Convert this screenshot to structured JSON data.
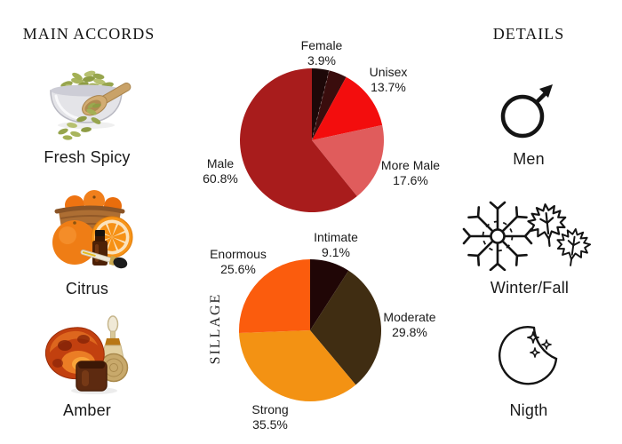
{
  "page": {
    "background": "#ffffff",
    "text_color": "#1a1a1a"
  },
  "left": {
    "title": "MAIN ACCORDS",
    "items": [
      {
        "label": "Fresh Spicy",
        "illustration": "cardamom-pods-bowl-scoop"
      },
      {
        "label": "Citrus",
        "illustration": "oranges-basket-slice-essential-oil"
      },
      {
        "label": "Amber",
        "illustration": "amber-stone-jar-perfume-bottle"
      }
    ]
  },
  "right": {
    "title": "DETAILS",
    "items": [
      {
        "label": "Men",
        "icon": "male-symbol"
      },
      {
        "label": "Winter/Fall",
        "icon": "snowflake-and-maple-leaves"
      },
      {
        "label": "Nigth",
        "icon": "crescent-moon-with-stars"
      }
    ]
  },
  "chart_data": [
    {
      "type": "pie",
      "name": "gender",
      "start_angle_deg": 0,
      "direction": "clockwise",
      "dashed_boundary_after_index": 0,
      "slices": [
        {
          "label": "Female",
          "pct_text": "3.9%",
          "value": 3.9,
          "color": "#1d0808"
        },
        {
          "label": "",
          "pct_text": "",
          "value": 4.0,
          "color": "#3a0d0d"
        },
        {
          "label": "Unisex",
          "pct_text": "13.7%",
          "value": 13.7,
          "color": "#f30d0d"
        },
        {
          "label": "More Male",
          "pct_text": "17.6%",
          "value": 17.6,
          "color": "#e05c5c"
        },
        {
          "label": "Male",
          "pct_text": "60.8%",
          "value": 60.8,
          "color": "#a81c1c"
        }
      ]
    },
    {
      "type": "pie",
      "name": "sillage",
      "axis_label": "SILLAGE",
      "start_angle_deg": 0,
      "direction": "clockwise",
      "slices": [
        {
          "label": "Intimate",
          "pct_text": "9.1%",
          "value": 9.1,
          "color": "#200606"
        },
        {
          "label": "Moderate",
          "pct_text": "29.8%",
          "value": 29.8,
          "color": "#402d12"
        },
        {
          "label": "Strong",
          "pct_text": "35.5%",
          "value": 35.5,
          "color": "#f39213"
        },
        {
          "label": "Enormous",
          "pct_text": "25.6%",
          "value": 25.6,
          "color": "#fb5c0d"
        }
      ]
    }
  ]
}
